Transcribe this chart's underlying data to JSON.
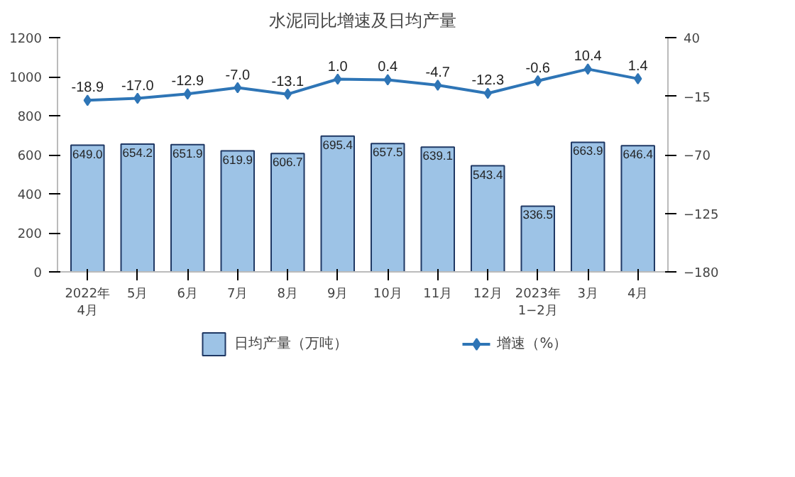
{
  "chart_data": {
    "type": "bar",
    "title": "水泥同比增速及日均产量",
    "categories": [
      "2022年\n4月",
      "5月",
      "6月",
      "7月",
      "8月",
      "9月",
      "10月",
      "11月",
      "12月",
      "2023年\n1−2月",
      "3月",
      "4月"
    ],
    "series": [
      {
        "name": "日均产量（万吨）",
        "color": "#9dc3e6",
        "values": [
          649.0,
          654.2,
          651.9,
          619.9,
          606.7,
          695.4,
          657.5,
          639.1,
          543.4,
          336.5,
          663.9,
          646.4
        ],
        "value_labels": [
          "649.0",
          "654.2",
          "651.9",
          "619.9",
          "606.7",
          "695.4",
          "657.5",
          "639.1",
          "543.4",
          "336.5",
          "663.9",
          "646.4"
        ]
      },
      {
        "name": "增速（%）",
        "type": "line",
        "axis": "y2",
        "color": "#2e75b6",
        "marker": "diamond",
        "values": [
          -18.9,
          -17.0,
          -12.9,
          -7.0,
          -13.1,
          1.0,
          0.4,
          -4.7,
          -12.3,
          -0.6,
          10.4,
          1.4
        ],
        "value_labels": [
          "-18.9",
          "-17.0",
          "-12.9",
          "-7.0",
          "-13.1",
          "1.0",
          "0.4",
          "-4.7",
          "-12.3",
          "-0.6",
          "10.4",
          "1.4"
        ]
      }
    ],
    "ylim": [
      0,
      1200
    ],
    "yticks": [
      0,
      200,
      400,
      600,
      800,
      1000,
      1200
    ],
    "y2lim": [
      -180,
      40
    ],
    "y2ticks": [
      -180,
      -125,
      -70,
      -15,
      40
    ],
    "legend": "bottom"
  }
}
